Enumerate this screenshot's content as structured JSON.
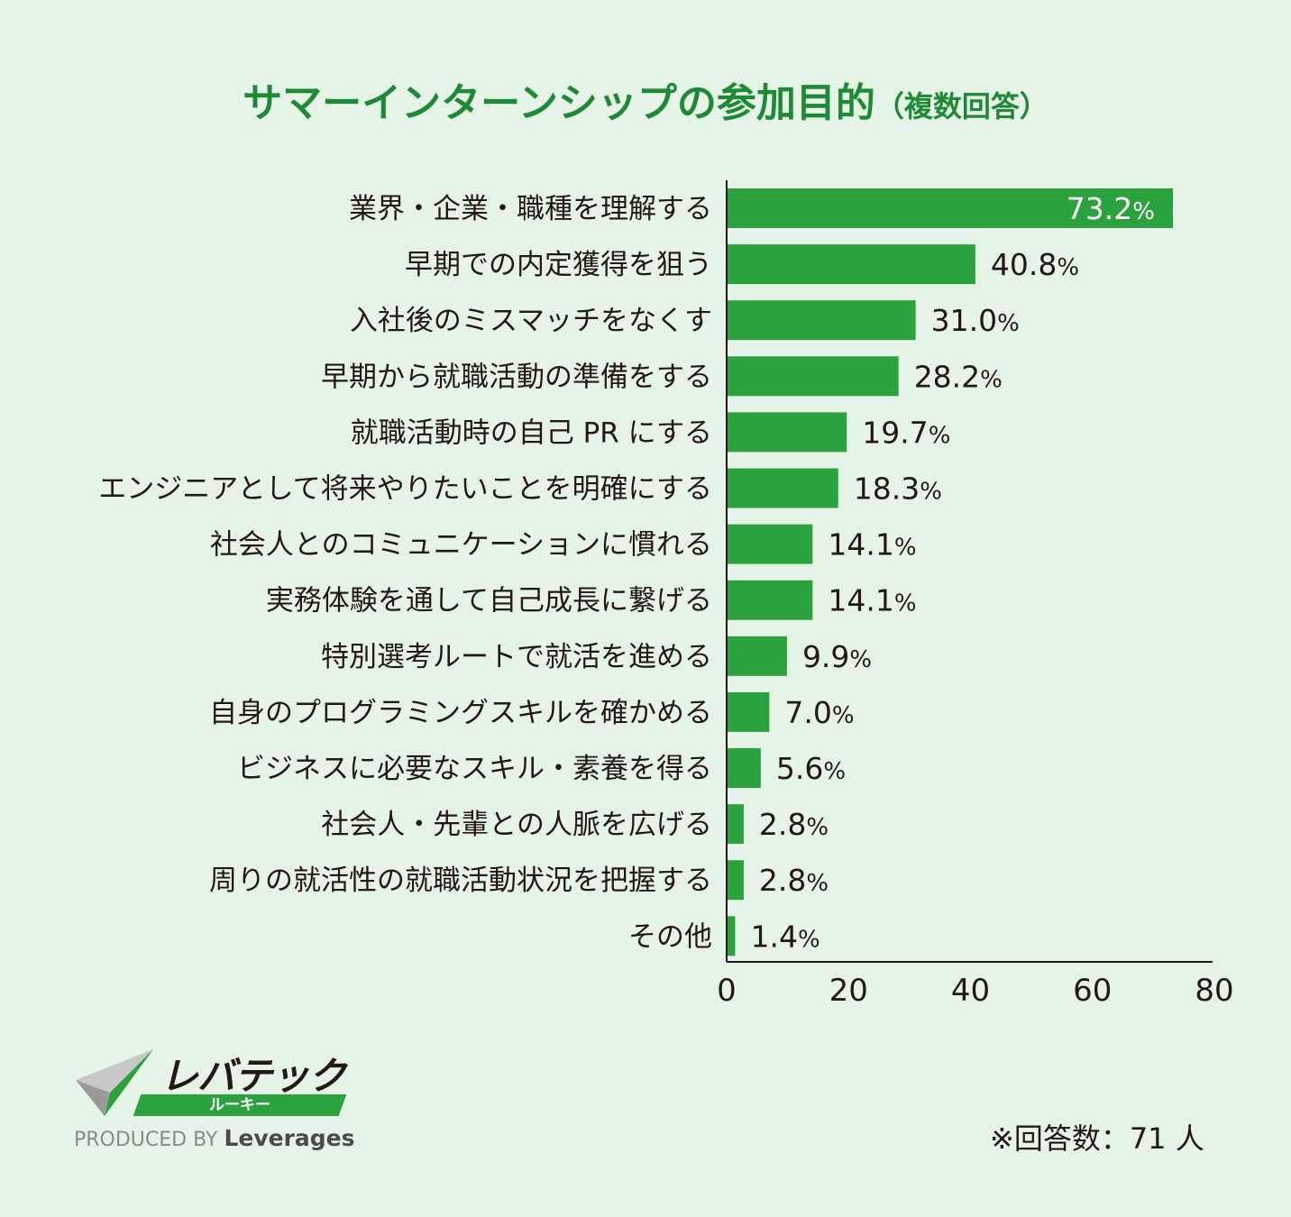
{
  "title": {
    "main": "サマーインターンシップの参加目的",
    "sub": "（複数回答）"
  },
  "chart_data": {
    "type": "bar",
    "orientation": "horizontal",
    "title": "サマーインターンシップの参加目的（複数回答）",
    "categories": [
      "業界・企業・職種を理解する",
      "早期での内定獲得を狙う",
      "入社後のミスマッチをなくす",
      "早期から就職活動の準備をする",
      "就職活動時の自己 PR にする",
      "エンジニアとして将来やりたいことを明確にする",
      "社会人とのコミュニケーションに慣れる",
      "実務体験を通して自己成長に繋げる",
      "特別選考ルートで就活を進める",
      "自身のプログラミングスキルを確かめる",
      "ビジネスに必要なスキル・素養を得る",
      "社会人・先輩との人脈を広げる",
      "周りの就活性の就職活動状況を把握する",
      "その他"
    ],
    "values": [
      73.2,
      40.8,
      31.0,
      28.2,
      19.7,
      18.3,
      14.1,
      14.1,
      9.9,
      7.0,
      5.6,
      2.8,
      2.8,
      1.4
    ],
    "value_labels": [
      "73.2",
      "40.8",
      "31.0",
      "28.2",
      "19.7",
      "18.3",
      "14.1",
      "14.1",
      "9.9",
      "7.0",
      "5.6",
      "2.8",
      "2.8",
      "1.4"
    ],
    "unit": "%",
    "xlim": [
      0,
      80
    ],
    "xticks": [
      "0",
      "20",
      "40",
      "60",
      "80"
    ],
    "xlabel": "",
    "ylabel": "",
    "grid": false,
    "colors": {
      "bar": "#2ba23d",
      "title": "#1f8a35",
      "axis": "#231815",
      "label": "#231815",
      "inside_label": "#ffffff"
    }
  },
  "logo": {
    "name": "レバテック",
    "band": "ルーキー",
    "produced_by": "PRODUCED BY",
    "brand": "Leverages"
  },
  "note": "※回答数：71 人"
}
